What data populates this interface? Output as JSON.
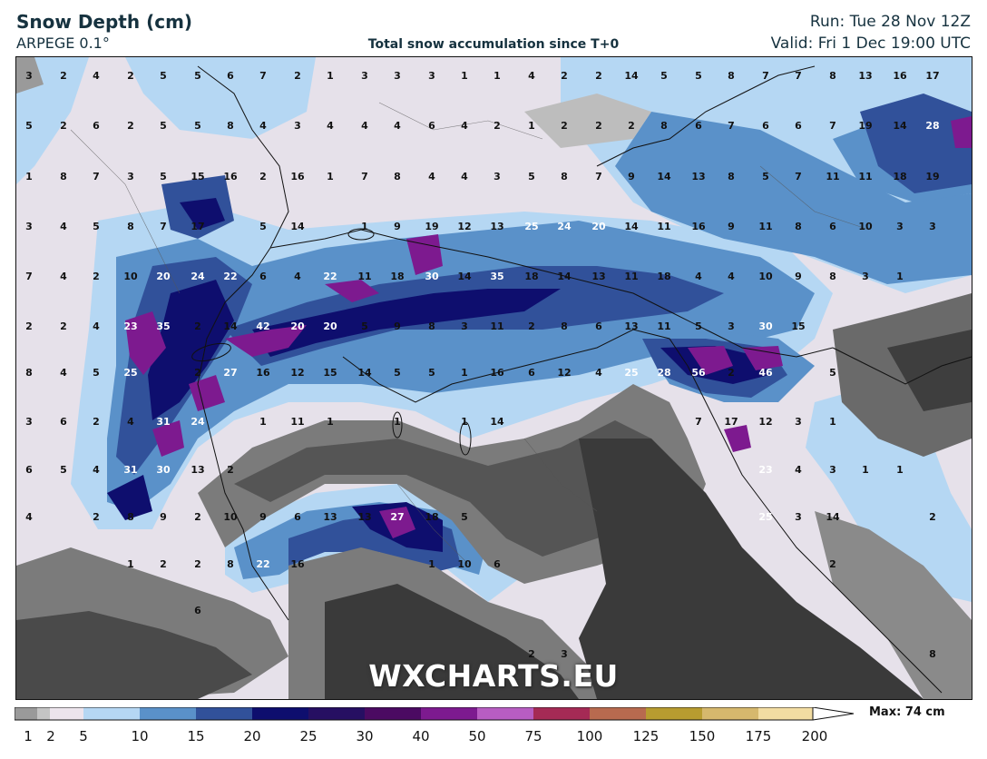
{
  "header": {
    "title": "Snow Depth (cm)",
    "model": "ARPEGE 0.1°",
    "subtitle": "Total snow accumulation since T+0",
    "run": "Run: Tue 28 Nov 12Z",
    "valid": "Valid: Fri 1 Dec 19:00 UTC"
  },
  "watermark": "WXCHARTS.EU",
  "legend": {
    "max_label": "Max: 74 cm",
    "tick_labels": [
      "1",
      "2",
      "5",
      "10",
      "15",
      "20",
      "25",
      "30",
      "40",
      "50",
      "75",
      "100",
      "125",
      "150",
      "175",
      "200"
    ],
    "colors": [
      "#9a9a9a",
      "#c4c4c4",
      "#ece4ec",
      "#b5d7f3",
      "#5a91c9",
      "#31519a",
      "#0e0e6e",
      "#260f62",
      "#4b0a62",
      "#7d1a8f",
      "#b85dc2",
      "#a52a55",
      "#b86a4f",
      "#b89c30",
      "#d6b86d",
      "#f2dca2"
    ]
  },
  "map": {
    "value_labels": [
      {
        "t": "3",
        "c": "d"
      },
      {
        "t": "2",
        "c": "d"
      },
      {
        "t": "4",
        "c": "d"
      },
      {
        "t": "2",
        "c": "d"
      },
      {
        "t": "5",
        "c": "d"
      },
      {
        "t": "5",
        "c": "d"
      },
      {
        "t": "6",
        "c": "d"
      },
      {
        "t": "7",
        "c": "d"
      },
      {
        "t": "2",
        "c": "d"
      },
      {
        "t": "1",
        "c": "d"
      },
      {
        "t": "3",
        "c": "d"
      },
      {
        "t": "3",
        "c": "d"
      },
      {
        "t": "3",
        "c": "d"
      },
      {
        "t": "1",
        "c": "d"
      },
      {
        "t": "1",
        "c": "d"
      },
      {
        "t": "4",
        "c": "d"
      },
      {
        "t": "2",
        "c": "d"
      },
      {
        "t": "2",
        "c": "d"
      },
      {
        "t": "14",
        "c": "d"
      },
      {
        "t": "5",
        "c": "d"
      },
      {
        "t": "5",
        "c": "d"
      },
      {
        "t": "8",
        "c": "d"
      },
      {
        "t": "7",
        "c": "d"
      },
      {
        "t": "7",
        "c": "d"
      },
      {
        "t": "8",
        "c": "d"
      },
      {
        "t": "13",
        "c": "d"
      },
      {
        "t": "16",
        "c": "d"
      },
      {
        "t": "17",
        "c": "d"
      },
      {
        "t": "5",
        "c": "d"
      },
      {
        "t": "2",
        "c": "d"
      },
      {
        "t": "6",
        "c": "d"
      },
      {
        "t": "2",
        "c": "d"
      },
      {
        "t": "5",
        "c": "d"
      },
      {
        "t": "5",
        "c": "d"
      },
      {
        "t": "8",
        "c": "d"
      },
      {
        "t": "4",
        "c": "d"
      },
      {
        "t": "3",
        "c": "d"
      },
      {
        "t": "4",
        "c": "d"
      },
      {
        "t": "4",
        "c": "d"
      },
      {
        "t": "4",
        "c": "d"
      },
      {
        "t": "6",
        "c": "d"
      },
      {
        "t": "4",
        "c": "d"
      },
      {
        "t": "2",
        "c": "d"
      },
      {
        "t": "1",
        "c": "d"
      },
      {
        "t": "2",
        "c": "d"
      },
      {
        "t": "2",
        "c": "d"
      },
      {
        "t": "2",
        "c": "d"
      },
      {
        "t": "8",
        "c": "d"
      },
      {
        "t": "6",
        "c": "d"
      },
      {
        "t": "7",
        "c": "d"
      },
      {
        "t": "6",
        "c": "d"
      },
      {
        "t": "6",
        "c": "d"
      },
      {
        "t": "7",
        "c": "d"
      },
      {
        "t": "19",
        "c": "d"
      },
      {
        "t": "14",
        "c": "d"
      },
      {
        "t": "28",
        "c": "w"
      },
      {
        "t": "1",
        "c": "d"
      },
      {
        "t": "8",
        "c": "d"
      },
      {
        "t": "7",
        "c": "d"
      },
      {
        "t": "3",
        "c": "d"
      },
      {
        "t": "5",
        "c": "d"
      },
      {
        "t": "15",
        "c": "d"
      },
      {
        "t": "16",
        "c": "d"
      },
      {
        "t": "2",
        "c": "d"
      },
      {
        "t": "16",
        "c": "d"
      },
      {
        "t": "1",
        "c": "d"
      },
      {
        "t": "7",
        "c": "d"
      },
      {
        "t": "8",
        "c": "d"
      },
      {
        "t": "4",
        "c": "d"
      },
      {
        "t": "4",
        "c": "d"
      },
      {
        "t": "3",
        "c": "d"
      },
      {
        "t": "5",
        "c": "d"
      },
      {
        "t": "8",
        "c": "d"
      },
      {
        "t": "7",
        "c": "d"
      },
      {
        "t": "9",
        "c": "d"
      },
      {
        "t": "14",
        "c": "d"
      },
      {
        "t": "13",
        "c": "d"
      },
      {
        "t": "8",
        "c": "d"
      },
      {
        "t": "5",
        "c": "d"
      },
      {
        "t": "7",
        "c": "d"
      },
      {
        "t": "11",
        "c": "d"
      },
      {
        "t": "11",
        "c": "d"
      },
      {
        "t": "18",
        "c": "d"
      },
      {
        "t": "19",
        "c": "d"
      },
      {
        "t": "3",
        "c": "d"
      },
      {
        "t": "4",
        "c": "d"
      },
      {
        "t": "5",
        "c": "d"
      },
      {
        "t": "8",
        "c": "d"
      },
      {
        "t": "7",
        "c": "d"
      },
      {
        "t": "17",
        "c": "d"
      },
      {
        "t": "5",
        "c": "d"
      },
      {
        "t": "14",
        "c": "d"
      },
      {
        "t": "1",
        "c": "d"
      },
      {
        "t": "9",
        "c": "d"
      },
      {
        "t": "19",
        "c": "d"
      },
      {
        "t": "12",
        "c": "d"
      },
      {
        "t": "13",
        "c": "d"
      },
      {
        "t": "25",
        "c": "w"
      },
      {
        "t": "24",
        "c": "w"
      },
      {
        "t": "20",
        "c": "w"
      },
      {
        "t": "14",
        "c": "d"
      },
      {
        "t": "11",
        "c": "d"
      },
      {
        "t": "16",
        "c": "d"
      },
      {
        "t": "9",
        "c": "d"
      },
      {
        "t": "11",
        "c": "d"
      },
      {
        "t": "8",
        "c": "d"
      },
      {
        "t": "6",
        "c": "d"
      },
      {
        "t": "10",
        "c": "d"
      },
      {
        "t": "3",
        "c": "d"
      },
      {
        "t": "3",
        "c": "d"
      },
      {
        "t": "7",
        "c": "d"
      },
      {
        "t": "4",
        "c": "d"
      },
      {
        "t": "2",
        "c": "d"
      },
      {
        "t": "10",
        "c": "d"
      },
      {
        "t": "20",
        "c": "w"
      },
      {
        "t": "24",
        "c": "w"
      },
      {
        "t": "22",
        "c": "w"
      },
      {
        "t": "6",
        "c": "d"
      },
      {
        "t": "4",
        "c": "d"
      },
      {
        "t": "22",
        "c": "w"
      },
      {
        "t": "11",
        "c": "d"
      },
      {
        "t": "18",
        "c": "d"
      },
      {
        "t": "30",
        "c": "w"
      },
      {
        "t": "14",
        "c": "d"
      },
      {
        "t": "35",
        "c": "w"
      },
      {
        "t": "18",
        "c": "d"
      },
      {
        "t": "14",
        "c": "d"
      },
      {
        "t": "13",
        "c": "d"
      },
      {
        "t": "11",
        "c": "d"
      },
      {
        "t": "18",
        "c": "d"
      },
      {
        "t": "4",
        "c": "d"
      },
      {
        "t": "4",
        "c": "d"
      },
      {
        "t": "10",
        "c": "d"
      },
      {
        "t": "9",
        "c": "d"
      },
      {
        "t": "8",
        "c": "d"
      },
      {
        "t": "3",
        "c": "d"
      },
      {
        "t": "1",
        "c": "d"
      },
      {
        "t": "2",
        "c": "d"
      },
      {
        "t": "2",
        "c": "d"
      },
      {
        "t": "4",
        "c": "d"
      },
      {
        "t": "23",
        "c": "w"
      },
      {
        "t": "35",
        "c": "w"
      },
      {
        "t": "2",
        "c": "d"
      },
      {
        "t": "14",
        "c": "d"
      },
      {
        "t": "42",
        "c": "w"
      },
      {
        "t": "20",
        "c": "w"
      },
      {
        "t": "20",
        "c": "w"
      },
      {
        "t": "5",
        "c": "d"
      },
      {
        "t": "9",
        "c": "d"
      },
      {
        "t": "8",
        "c": "d"
      },
      {
        "t": "3",
        "c": "d"
      },
      {
        "t": "11",
        "c": "d"
      },
      {
        "t": "2",
        "c": "d"
      },
      {
        "t": "8",
        "c": "d"
      },
      {
        "t": "6",
        "c": "d"
      },
      {
        "t": "13",
        "c": "d"
      },
      {
        "t": "11",
        "c": "d"
      },
      {
        "t": "5",
        "c": "d"
      },
      {
        "t": "3",
        "c": "d"
      },
      {
        "t": "30",
        "c": "w"
      },
      {
        "t": "15",
        "c": "d"
      },
      {
        "t": "8",
        "c": "d"
      },
      {
        "t": "4",
        "c": "d"
      },
      {
        "t": "5",
        "c": "d"
      },
      {
        "t": "25",
        "c": "w"
      },
      {
        "t": "2",
        "c": "d"
      },
      {
        "t": "27",
        "c": "w"
      },
      {
        "t": "16",
        "c": "d"
      },
      {
        "t": "12",
        "c": "d"
      },
      {
        "t": "15",
        "c": "d"
      },
      {
        "t": "14",
        "c": "d"
      },
      {
        "t": "5",
        "c": "d"
      },
      {
        "t": "5",
        "c": "d"
      },
      {
        "t": "1",
        "c": "d"
      },
      {
        "t": "16",
        "c": "d"
      },
      {
        "t": "6",
        "c": "d"
      },
      {
        "t": "12",
        "c": "d"
      },
      {
        "t": "4",
        "c": "d"
      },
      {
        "t": "25",
        "c": "w"
      },
      {
        "t": "28",
        "c": "w"
      },
      {
        "t": "56",
        "c": "w"
      },
      {
        "t": "2",
        "c": "d"
      },
      {
        "t": "46",
        "c": "w"
      },
      {
        "t": "5",
        "c": "d"
      },
      {
        "t": "3",
        "c": "d"
      },
      {
        "t": "6",
        "c": "d"
      },
      {
        "t": "2",
        "c": "d"
      },
      {
        "t": "4",
        "c": "d"
      },
      {
        "t": "31",
        "c": "w"
      },
      {
        "t": "24",
        "c": "w"
      },
      {
        "t": "1",
        "c": "d"
      },
      {
        "t": "11",
        "c": "d"
      },
      {
        "t": "1",
        "c": "d"
      },
      {
        "t": "1",
        "c": "d"
      },
      {
        "t": "1",
        "c": "d"
      },
      {
        "t": "14",
        "c": "d"
      },
      {
        "t": "7",
        "c": "d"
      },
      {
        "t": "17",
        "c": "d"
      },
      {
        "t": "12",
        "c": "d"
      },
      {
        "t": "3",
        "c": "d"
      },
      {
        "t": "1",
        "c": "d"
      },
      {
        "t": "6",
        "c": "d"
      },
      {
        "t": "5",
        "c": "d"
      },
      {
        "t": "4",
        "c": "d"
      },
      {
        "t": "31",
        "c": "w"
      },
      {
        "t": "30",
        "c": "w"
      },
      {
        "t": "13",
        "c": "d"
      },
      {
        "t": "2",
        "c": "d"
      },
      {
        "t": "23",
        "c": "w"
      },
      {
        "t": "4",
        "c": "d"
      },
      {
        "t": "3",
        "c": "d"
      },
      {
        "t": "1",
        "c": "d"
      },
      {
        "t": "1",
        "c": "d"
      },
      {
        "t": "4",
        "c": "d"
      },
      {
        "t": "2",
        "c": "d"
      },
      {
        "t": "8",
        "c": "d"
      },
      {
        "t": "9",
        "c": "d"
      },
      {
        "t": "2",
        "c": "d"
      },
      {
        "t": "10",
        "c": "d"
      },
      {
        "t": "9",
        "c": "d"
      },
      {
        "t": "6",
        "c": "d"
      },
      {
        "t": "13",
        "c": "d"
      },
      {
        "t": "13",
        "c": "d"
      },
      {
        "t": "27",
        "c": "w"
      },
      {
        "t": "18",
        "c": "d"
      },
      {
        "t": "5",
        "c": "d"
      },
      {
        "t": "25",
        "c": "w"
      },
      {
        "t": "3",
        "c": "d"
      },
      {
        "t": "14",
        "c": "d"
      },
      {
        "t": "2",
        "c": "d"
      },
      {
        "t": "1",
        "c": "d"
      },
      {
        "t": "2",
        "c": "d"
      },
      {
        "t": "2",
        "c": "d"
      },
      {
        "t": "8",
        "c": "d"
      },
      {
        "t": "22",
        "c": "w"
      },
      {
        "t": "16",
        "c": "d"
      },
      {
        "t": "1",
        "c": "d"
      },
      {
        "t": "10",
        "c": "d"
      },
      {
        "t": "6",
        "c": "d"
      },
      {
        "t": "2",
        "c": "d"
      },
      {
        "t": "6",
        "c": "d"
      },
      {
        "t": "2",
        "c": "d"
      },
      {
        "t": "3",
        "c": "d"
      },
      {
        "t": "8",
        "c": "d"
      }
    ]
  }
}
